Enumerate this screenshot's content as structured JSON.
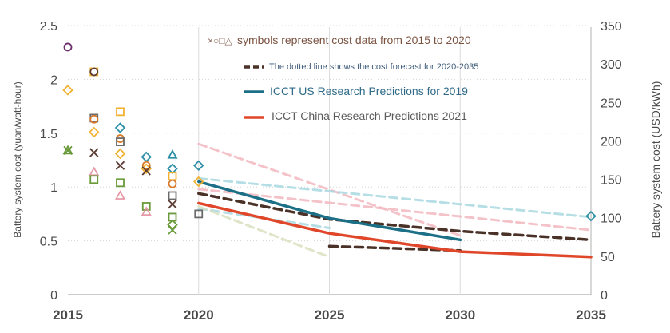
{
  "chart_data": {
    "type": "scatter",
    "x_axis": {
      "ticks": [
        "2015",
        "2020",
        "2025",
        "2030",
        "2035"
      ],
      "range": [
        2015,
        2035
      ]
    },
    "y_left": {
      "label": "Battery system cost (yuan/watt-hour)",
      "range": [
        0,
        2.5
      ],
      "ticks": [
        "0",
        "0.5",
        "1",
        "1.5",
        "2",
        "2.5"
      ]
    },
    "y_right": {
      "label": "Battery system cost (USD/kWh)",
      "range": [
        0,
        350
      ],
      "ticks": [
        "0",
        "50",
        "100",
        "150",
        "200",
        "250",
        "300",
        "350"
      ]
    },
    "legend": {
      "symbols_note": "symbols represent cost data from 2015 to 2020",
      "symbols_glyphs": "×○□△",
      "dashed_note": "The dotted line shows the cost forecast for 2020-2035",
      "us_label": "ICCT US Research Predictions for 2019",
      "china_label": "ICCT China Research Predictions 2021"
    },
    "colors": {
      "us": "#1b6f86",
      "china": "#e0472a",
      "forecast": "#4a3228",
      "purple": "#6b2d6b",
      "orange": "#d97a2b",
      "yellow": "#f2b233",
      "green": "#6a9a3a",
      "teal": "#2e8fa8",
      "pink": "#e69aa8",
      "brown": "#5a3a30",
      "gray": "#6a6a6a",
      "lightblue": "#a8d8e0",
      "lightpink": "#f2b8c0",
      "lightgreen": "#d8e0c0"
    },
    "scatter_points": [
      {
        "x": 2015,
        "y": 2.3,
        "marker": "circle",
        "color": "purple"
      },
      {
        "x": 2015,
        "y": 1.9,
        "marker": "diamond",
        "color": "yellow"
      },
      {
        "x": 2015,
        "y": 1.34,
        "marker": "x",
        "color": "green"
      },
      {
        "x": 2015,
        "y": 1.34,
        "marker": "triangle",
        "color": "green"
      },
      {
        "x": 2016,
        "y": 2.07,
        "marker": "square",
        "color": "yellow"
      },
      {
        "x": 2016,
        "y": 2.07,
        "marker": "circle",
        "color": "brown"
      },
      {
        "x": 2016,
        "y": 1.64,
        "marker": "square",
        "color": "gray"
      },
      {
        "x": 2016,
        "y": 1.63,
        "marker": "circle",
        "color": "orange"
      },
      {
        "x": 2016,
        "y": 1.51,
        "marker": "diamond",
        "color": "yellow"
      },
      {
        "x": 2016,
        "y": 1.32,
        "marker": "x",
        "color": "brown"
      },
      {
        "x": 2016,
        "y": 1.14,
        "marker": "triangle",
        "color": "pink"
      },
      {
        "x": 2016,
        "y": 1.07,
        "marker": "square",
        "color": "green"
      },
      {
        "x": 2017,
        "y": 1.7,
        "marker": "square",
        "color": "yellow"
      },
      {
        "x": 2017,
        "y": 1.55,
        "marker": "diamond",
        "color": "teal"
      },
      {
        "x": 2017,
        "y": 1.45,
        "marker": "circle",
        "color": "orange"
      },
      {
        "x": 2017,
        "y": 1.42,
        "marker": "square",
        "color": "gray"
      },
      {
        "x": 2017,
        "y": 1.31,
        "marker": "diamond",
        "color": "yellow"
      },
      {
        "x": 2017,
        "y": 1.2,
        "marker": "x",
        "color": "brown"
      },
      {
        "x": 2017,
        "y": 1.04,
        "marker": "square",
        "color": "green"
      },
      {
        "x": 2017,
        "y": 0.92,
        "marker": "triangle",
        "color": "pink"
      },
      {
        "x": 2018,
        "y": 1.28,
        "marker": "diamond",
        "color": "teal"
      },
      {
        "x": 2018,
        "y": 1.2,
        "marker": "circle",
        "color": "orange"
      },
      {
        "x": 2018,
        "y": 1.17,
        "marker": "diamond",
        "color": "yellow"
      },
      {
        "x": 2018,
        "y": 1.15,
        "marker": "x",
        "color": "brown"
      },
      {
        "x": 2018,
        "y": 0.82,
        "marker": "square",
        "color": "green"
      },
      {
        "x": 2018,
        "y": 0.77,
        "marker": "triangle",
        "color": "pink"
      },
      {
        "x": 2019,
        "y": 1.3,
        "marker": "triangle",
        "color": "teal"
      },
      {
        "x": 2019,
        "y": 1.17,
        "marker": "diamond",
        "color": "teal"
      },
      {
        "x": 2019,
        "y": 1.1,
        "marker": "square",
        "color": "yellow"
      },
      {
        "x": 2019,
        "y": 1.03,
        "marker": "circle",
        "color": "orange"
      },
      {
        "x": 2019,
        "y": 0.92,
        "marker": "square",
        "color": "gray"
      },
      {
        "x": 2019,
        "y": 0.84,
        "marker": "x",
        "color": "brown"
      },
      {
        "x": 2019,
        "y": 0.72,
        "marker": "square",
        "color": "green"
      },
      {
        "x": 2019,
        "y": 0.65,
        "marker": "diamond",
        "color": "green"
      },
      {
        "x": 2019,
        "y": 0.6,
        "marker": "x",
        "color": "green"
      },
      {
        "x": 2020,
        "y": 1.2,
        "marker": "diamond",
        "color": "teal"
      },
      {
        "x": 2020,
        "y": 1.05,
        "marker": "diamond",
        "color": "yellow"
      },
      {
        "x": 2020,
        "y": 0.75,
        "marker": "square",
        "color": "gray"
      },
      {
        "x": 2035,
        "y": 0.73,
        "marker": "diamond",
        "color": "teal"
      }
    ],
    "forecast_light": [
      {
        "name": "pink forecast",
        "color": "lightpink",
        "x": [
          2020,
          2030
        ],
        "y": [
          1.4,
          0.55
        ]
      },
      {
        "name": "pink forecast low",
        "color": "lightpink",
        "x": [
          2020,
          2035
        ],
        "y": [
          0.98,
          0.6
        ]
      },
      {
        "name": "light blue forecast",
        "color": "lightblue",
        "x": [
          2020,
          2035
        ],
        "y": [
          1.08,
          0.72
        ]
      },
      {
        "name": "light blue forecast 2",
        "color": "lightblue",
        "x": [
          2020,
          2025
        ],
        "y": [
          0.8,
          0.62
        ]
      },
      {
        "name": "light green forecast",
        "color": "lightgreen",
        "x": [
          2020,
          2025
        ],
        "y": [
          0.82,
          0.35
        ]
      }
    ],
    "forecast_dark": [
      {
        "name": "dark forecast",
        "color": "forecast",
        "x": [
          2020,
          2025,
          2030,
          2035
        ],
        "y": [
          0.94,
          0.7,
          0.59,
          0.51
        ]
      },
      {
        "name": "dark forecast late",
        "color": "forecast",
        "x": [
          2025,
          2030
        ],
        "y": [
          0.45,
          0.41
        ]
      }
    ],
    "series": [
      {
        "name": "ICCT US Research Predictions for 2019",
        "color": "us",
        "x": [
          2020,
          2025,
          2030
        ],
        "y": [
          1.05,
          0.71,
          0.51
        ]
      },
      {
        "name": "ICCT China Research Predictions 2021",
        "color": "china",
        "x": [
          2020,
          2025,
          2030,
          2035
        ],
        "y": [
          0.85,
          0.57,
          0.4,
          0.35
        ]
      }
    ]
  }
}
